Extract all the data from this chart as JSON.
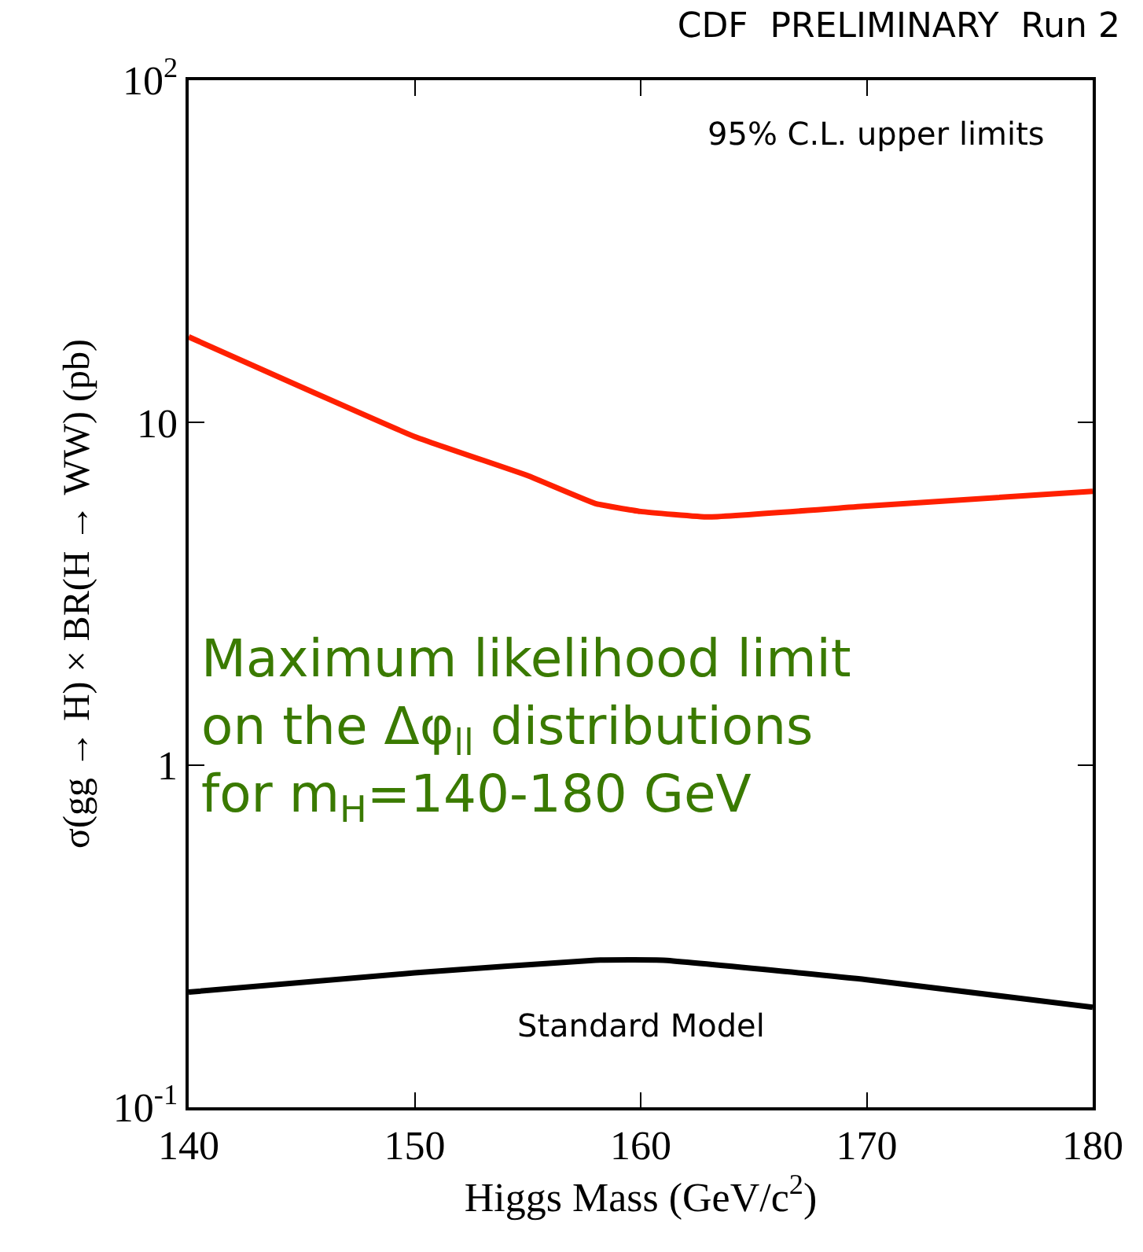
{
  "chart_data": {
    "type": "line",
    "title": "CDF  PRELIMINARY  Run 2",
    "xlabel": "Higgs Mass (GeV/c$^{2}$)",
    "ylabel": "σ(gg → H) × BR(H → WW) (pb)",
    "series": [
      {
        "color": "#ff2000",
        "x": [
          140,
          150,
          155,
          158,
          160,
          163,
          170,
          180
        ],
        "values": [
          17.8,
          9.1,
          7.0,
          5.8,
          5.5,
          5.3,
          5.7,
          6.3
        ]
      },
      {
        "color": "#000000",
        "x": [
          140,
          150,
          158,
          161,
          170,
          180
        ],
        "values": [
          0.217,
          0.247,
          0.269,
          0.269,
          0.236,
          0.196
        ]
      }
    ],
    "annotations": [
      "95% C.L. upper limits",
      "Maximum likelihood limit\non the Δφ$_{ll}$ distributions\nfor m$_{H}$=140-180 GeV",
      "Standard Model"
    ],
    "log": true,
    "marker": "none",
    "line_style": "solid",
    "xlim": [
      140,
      180
    ],
    "xticks": [
      140,
      150,
      160,
      170,
      180
    ],
    "ylim": [
      0.1,
      100
    ],
    "yticks": [
      {
        "value": 0.1,
        "label": "10$^{-1}$"
      },
      1,
      10,
      {
        "value": 100,
        "label": "10$^{2}$"
      }
    ]
  }
}
